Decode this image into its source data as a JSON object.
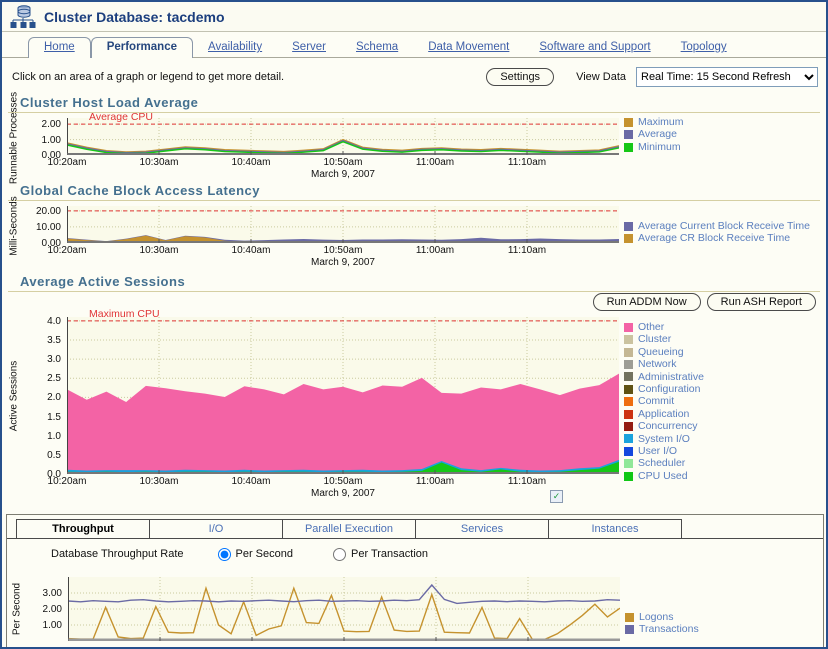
{
  "header": {
    "title": "Cluster Database: tacdemo"
  },
  "tabs": [
    {
      "label": "Home",
      "active": false
    },
    {
      "label": "Performance",
      "active": true
    },
    {
      "label": "Availability",
      "active": false
    },
    {
      "label": "Server",
      "active": false
    },
    {
      "label": "Schema",
      "active": false
    },
    {
      "label": "Data Movement",
      "active": false
    },
    {
      "label": "Software and Support",
      "active": false
    },
    {
      "label": "Topology",
      "active": false
    }
  ],
  "toolbar": {
    "instruction": "Click on an area of a graph or legend to get more detail.",
    "settings_label": "Settings",
    "view_data_label": "View Data",
    "view_data_value": "Real Time: 15 Second Refresh"
  },
  "actions": {
    "run_addm_label": "Run ADDM Now",
    "run_ash_label": "Run ASH Report"
  },
  "subtabs": [
    {
      "label": "Throughput",
      "active": true
    },
    {
      "label": "I/O",
      "active": false
    },
    {
      "label": "Parallel Execution",
      "active": false
    },
    {
      "label": "Services",
      "active": false
    },
    {
      "label": "Instances",
      "active": false
    }
  ],
  "throughput": {
    "rate_label": "Database Throughput Rate",
    "options": [
      {
        "label": "Per Second",
        "selected": true
      },
      {
        "label": "Per Transaction",
        "selected": false
      }
    ]
  },
  "icons": {
    "header_icon": "cluster-database-icon",
    "dropdown": "chevron-down-icon",
    "auto_refresh": "auto-refresh-icon",
    "auto_refresh_glyph": "✓"
  },
  "colors": {
    "accent_heading": "#44708F",
    "threshold_red": "#E03535",
    "tan": "#C5922E",
    "purple": "#6A6AA5",
    "green": "#16C716",
    "pink": "#F363A5",
    "legend_text": "#5B7FBE"
  },
  "chart_data": [
    {
      "type": "line",
      "title": "Cluster Host Load Average",
      "ylabel": "Runnable Processes",
      "ylim": [
        0,
        2.4
      ],
      "yticks": [
        {
          "v": 0,
          "label": "0.00"
        },
        {
          "v": 1,
          "label": "1.00"
        },
        {
          "v": 2,
          "label": "2.00"
        }
      ],
      "threshold": {
        "value": 2,
        "label": "Average CPU"
      },
      "x_tick_labels": [
        "10:20am",
        "10:30am",
        "10:40am",
        "10:50am",
        "11:00am",
        "11:10am"
      ],
      "x_date": "March 9, 2007",
      "series": [
        {
          "name": "Maximum",
          "color": "#C5922E",
          "values": [
            0.78,
            0.5,
            0.28,
            0.2,
            0.24,
            0.38,
            0.52,
            0.46,
            0.34,
            0.3,
            0.26,
            0.22,
            0.3,
            0.4,
            1.0,
            0.5,
            0.36,
            0.3,
            0.42,
            0.46,
            0.38,
            0.34,
            0.42,
            0.36,
            0.3,
            0.24,
            0.28,
            0.32,
            0.6
          ]
        },
        {
          "name": "Average",
          "color": "#6A6AA5",
          "values": [
            0.72,
            0.44,
            0.22,
            0.15,
            0.18,
            0.32,
            0.46,
            0.4,
            0.28,
            0.24,
            0.2,
            0.16,
            0.24,
            0.34,
            0.93,
            0.44,
            0.3,
            0.24,
            0.36,
            0.4,
            0.32,
            0.28,
            0.36,
            0.3,
            0.24,
            0.18,
            0.22,
            0.26,
            0.53
          ]
        },
        {
          "name": "Minimum",
          "color": "#16C716",
          "values": [
            0.65,
            0.37,
            0.16,
            0.09,
            0.12,
            0.26,
            0.4,
            0.34,
            0.22,
            0.18,
            0.14,
            0.1,
            0.18,
            0.28,
            0.86,
            0.38,
            0.24,
            0.18,
            0.3,
            0.34,
            0.26,
            0.22,
            0.3,
            0.24,
            0.18,
            0.12,
            0.16,
            0.2,
            0.46
          ]
        }
      ],
      "legend": [
        {
          "name": "Maximum",
          "color": "#C5922E"
        },
        {
          "name": "Average",
          "color": "#6A6AA5"
        },
        {
          "name": "Minimum",
          "color": "#16C716"
        }
      ]
    },
    {
      "type": "area-stacked",
      "title": "Global Cache Block Access Latency",
      "ylabel": "Milli-Seconds",
      "ylim": [
        0,
        23
      ],
      "yticks": [
        {
          "v": 0,
          "label": "0.00"
        },
        {
          "v": 10,
          "label": "10.00"
        },
        {
          "v": 20,
          "label": "20.00"
        }
      ],
      "threshold": {
        "value": 20,
        "label": ""
      },
      "x_tick_labels": [
        "10:20am",
        "10:30am",
        "10:40am",
        "10:50am",
        "11:00am",
        "11:10am"
      ],
      "x_date": "March 9, 2007",
      "series": [
        {
          "name": "Average CR Block Receive Time",
          "color": "#C5922E",
          "values": [
            2.8,
            1.8,
            1.0,
            2.4,
            4.6,
            1.6,
            4.2,
            3.4,
            1.4,
            0.6,
            0.5,
            0.6,
            0.7,
            0.6,
            0.5,
            0.6,
            0.7,
            0.6,
            0.7,
            0.6,
            0.8,
            1.0,
            0.8,
            0.7,
            0.9,
            0.8,
            0.7,
            0.8,
            0.9
          ]
        },
        {
          "name": "Average Current Block Receive Time",
          "color": "#6A6AA5",
          "values": [
            0.3,
            0.3,
            0.2,
            0.3,
            0.3,
            0.3,
            0.3,
            0.4,
            0.6,
            0.9,
            1.3,
            1.6,
            1.8,
            1.5,
            1.4,
            1.6,
            1.5,
            1.7,
            1.5,
            1.4,
            1.6,
            2.3,
            1.5,
            1.7,
            1.9,
            1.6,
            1.5,
            1.4,
            1.6
          ]
        }
      ],
      "legend": [
        {
          "name": "Average Current Block Receive Time",
          "color": "#6A6AA5"
        },
        {
          "name": "Average CR Block Receive Time",
          "color": "#C5922E"
        }
      ]
    },
    {
      "type": "area-stacked",
      "title": "Average Active Sessions",
      "ylabel": "Active Sessions",
      "ylim": [
        0,
        4.1
      ],
      "yticks": [
        {
          "v": 0.0,
          "label": "0.0"
        },
        {
          "v": 0.5,
          "label": "0.5"
        },
        {
          "v": 1.0,
          "label": "1.0"
        },
        {
          "v": 1.5,
          "label": "1.5"
        },
        {
          "v": 2.0,
          "label": "2.0"
        },
        {
          "v": 2.5,
          "label": "2.5"
        },
        {
          "v": 3.0,
          "label": "3.0"
        },
        {
          "v": 3.5,
          "label": "3.5"
        },
        {
          "v": 4.0,
          "label": "4.0"
        }
      ],
      "threshold": {
        "value": 4,
        "label": "Maximum CPU"
      },
      "x_tick_labels": [
        "10:20am",
        "10:30am",
        "10:40am",
        "10:50am",
        "11:00am",
        "11:10am"
      ],
      "x_date": "March 9, 2007",
      "series": [
        {
          "name": "CPU Used",
          "color": "#16C716",
          "values": [
            0.06,
            0.05,
            0.06,
            0.05,
            0.06,
            0.05,
            0.06,
            0.06,
            0.05,
            0.06,
            0.05,
            0.06,
            0.06,
            0.05,
            0.06,
            0.06,
            0.05,
            0.06,
            0.08,
            0.3,
            0.1,
            0.06,
            0.12,
            0.06,
            0.05,
            0.06,
            0.1,
            0.14,
            0.32
          ]
        },
        {
          "name": "System I/O",
          "color": "#19A3DD",
          "values": [
            0.05,
            0.04,
            0.04,
            0.05,
            0.04,
            0.04,
            0.05,
            0.04,
            0.04,
            0.05,
            0.04,
            0.04,
            0.05,
            0.04,
            0.04,
            0.05,
            0.04,
            0.04,
            0.05,
            0.04,
            0.05,
            0.04,
            0.04,
            0.05,
            0.04,
            0.04,
            0.05,
            0.04,
            0.05
          ]
        },
        {
          "name": "Other",
          "color": "#F363A5",
          "values": [
            2.1,
            1.85,
            2.05,
            1.78,
            2.2,
            2.15,
            2.05,
            2.0,
            1.92,
            2.18,
            2.12,
            1.98,
            2.24,
            2.12,
            2.18,
            2.02,
            2.22,
            2.18,
            2.38,
            1.78,
            1.95,
            2.16,
            2.05,
            2.24,
            2.12,
            1.96,
            2.08,
            2.14,
            2.25
          ]
        }
      ],
      "legend": [
        {
          "name": "Other",
          "color": "#F363A5"
        },
        {
          "name": "Cluster",
          "color": "#CBC3A0"
        },
        {
          "name": "Queueing",
          "color": "#C4B794"
        },
        {
          "name": "Network",
          "color": "#9D9D95"
        },
        {
          "name": "Administrative",
          "color": "#73735F"
        },
        {
          "name": "Configuration",
          "color": "#5F5213"
        },
        {
          "name": "Commit",
          "color": "#EE6E11"
        },
        {
          "name": "Application",
          "color": "#CC3311"
        },
        {
          "name": "Concurrency",
          "color": "#931C10"
        },
        {
          "name": "System I/O",
          "color": "#19A3DD"
        },
        {
          "name": "User I/O",
          "color": "#1348DE"
        },
        {
          "name": "Scheduler",
          "color": "#90E899"
        },
        {
          "name": "CPU Used",
          "color": "#10C715"
        }
      ]
    },
    {
      "type": "line",
      "ylabel": "Per Second",
      "ylim": [
        0,
        4
      ],
      "yticks": [
        {
          "v": 1,
          "label": "1.00"
        },
        {
          "v": 2,
          "label": "2.00"
        },
        {
          "v": 3,
          "label": "3.00"
        }
      ],
      "x_tick_labels": [],
      "series": [
        {
          "name": "Logons",
          "color": "#C5922E",
          "values": [
            0.15,
            0.12,
            0.12,
            2.1,
            0.25,
            0.15,
            0.18,
            2.15,
            0.55,
            0.5,
            0.52,
            3.3,
            1.0,
            0.45,
            2.45,
            0.35,
            0.75,
            0.95,
            3.3,
            1.15,
            1.1,
            2.85,
            0.62,
            0.58,
            0.6,
            2.75,
            0.68,
            0.6,
            0.62,
            2.9,
            0.55,
            0.52,
            0.5,
            2.1,
            0.18,
            0.15,
            1.4,
            0.12,
            0.1,
            0.45,
            1.0,
            1.6,
            2.3,
            1.5,
            2.05
          ]
        },
        {
          "name": "Transactions",
          "color": "#6A6AA5",
          "values": [
            2.5,
            2.45,
            2.52,
            2.48,
            2.45,
            2.55,
            2.58,
            2.5,
            2.45,
            2.48,
            2.52,
            2.5,
            2.45,
            2.5,
            2.48,
            2.52,
            2.55,
            2.5,
            2.46,
            2.52,
            2.55,
            2.48,
            2.5,
            2.52,
            2.48,
            2.5,
            2.55,
            2.52,
            2.58,
            3.5,
            2.6,
            2.35,
            2.42,
            2.48,
            2.5,
            2.46,
            2.5,
            2.48,
            2.45,
            2.5,
            2.52,
            2.48,
            2.5,
            2.58,
            2.55
          ]
        }
      ],
      "legend": [
        {
          "name": "Logons",
          "color": "#C5922E"
        },
        {
          "name": "Transactions",
          "color": "#6A6AA5"
        }
      ]
    }
  ]
}
